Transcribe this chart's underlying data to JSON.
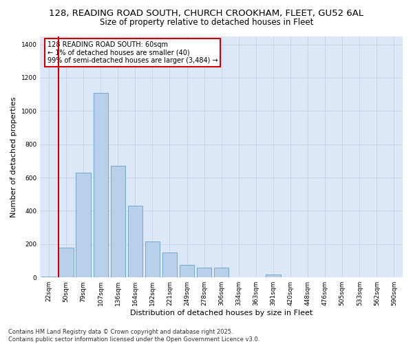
{
  "title_line1": "128, READING ROAD SOUTH, CHURCH CROOKHAM, FLEET, GU52 6AL",
  "title_line2": "Size of property relative to detached houses in Fleet",
  "xlabel": "Distribution of detached houses by size in Fleet",
  "ylabel": "Number of detached properties",
  "categories": [
    "22sqm",
    "50sqm",
    "79sqm",
    "107sqm",
    "136sqm",
    "164sqm",
    "192sqm",
    "221sqm",
    "249sqm",
    "278sqm",
    "306sqm",
    "334sqm",
    "363sqm",
    "391sqm",
    "420sqm",
    "448sqm",
    "476sqm",
    "505sqm",
    "533sqm",
    "562sqm",
    "590sqm"
  ],
  "values": [
    5,
    180,
    630,
    1110,
    670,
    430,
    215,
    150,
    75,
    60,
    60,
    0,
    0,
    18,
    0,
    0,
    0,
    0,
    0,
    0,
    0
  ],
  "bar_color": "#b8d0ea",
  "bar_edge_color": "#6a9fc8",
  "vline_color": "#cc0000",
  "annotation_text": "128 READING ROAD SOUTH: 60sqm\n← 1% of detached houses are smaller (40)\n99% of semi-detached houses are larger (3,484) →",
  "annotation_box_color": "#ffffff",
  "annotation_box_edge": "#cc0000",
  "ylim": [
    0,
    1450
  ],
  "yticks": [
    0,
    200,
    400,
    600,
    800,
    1000,
    1200,
    1400
  ],
  "grid_color": "#c8d4e8",
  "background_color": "#dce8f8",
  "footer_text": "Contains HM Land Registry data © Crown copyright and database right 2025.\nContains public sector information licensed under the Open Government Licence v3.0.",
  "title_fontsize": 9.5,
  "subtitle_fontsize": 8.5,
  "tick_fontsize": 6.5,
  "label_fontsize": 8,
  "footer_fontsize": 6,
  "annot_fontsize": 7
}
